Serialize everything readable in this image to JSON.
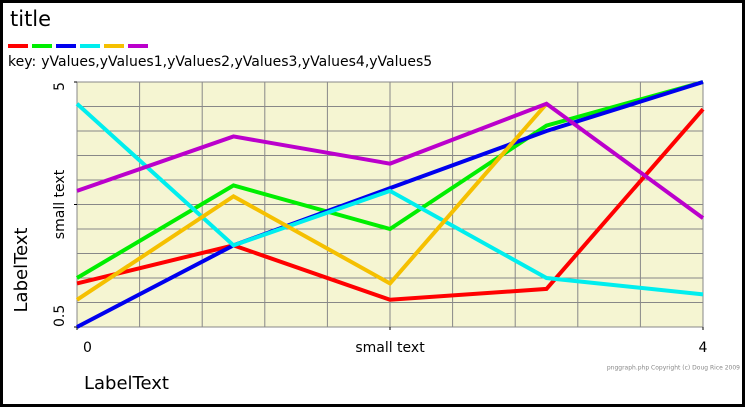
{
  "chart_data": {
    "type": "line",
    "title": "title",
    "key_label": "key:",
    "x": [
      0,
      1,
      2,
      3,
      4
    ],
    "series": [
      {
        "name": "yValues",
        "color": "#ff0000",
        "values": [
          1.3,
          2.0,
          1.0,
          1.2,
          4.5
        ]
      },
      {
        "name": "yValues1",
        "color": "#00ee00",
        "values": [
          1.4,
          3.1,
          2.3,
          4.2,
          5
        ]
      },
      {
        "name": "yValues2",
        "color": "#0000ee",
        "values": [
          0.5,
          2.0,
          3.05,
          4.1,
          5
        ]
      },
      {
        "name": "yValues3",
        "color": "#00eeee",
        "values": [
          4.6,
          2.0,
          3.0,
          1.4,
          1.1
        ]
      },
      {
        "name": "yValues4",
        "color": "#f5c000",
        "values": [
          1.0,
          2.9,
          1.3,
          4.6,
          null
        ]
      },
      {
        "name": "yValues5",
        "color": "#bb00cc",
        "values": [
          3.0,
          4.0,
          3.5,
          4.6,
          2.5
        ]
      }
    ],
    "xlim": [
      0,
      4
    ],
    "xticks": [
      0,
      {
        "value": 2,
        "label": "small text"
      },
      4
    ],
    "ylim": [
      0.5,
      5
    ],
    "yticks": [
      0.5,
      {
        "value": 2.75,
        "label": "small text"
      },
      5
    ],
    "xlabel": "LabelText",
    "ylabel": "LabelText",
    "grid": true,
    "grid_lines": 10,
    "credit": "pnggraph.php Copyright (c) Doug Rice 2009"
  }
}
